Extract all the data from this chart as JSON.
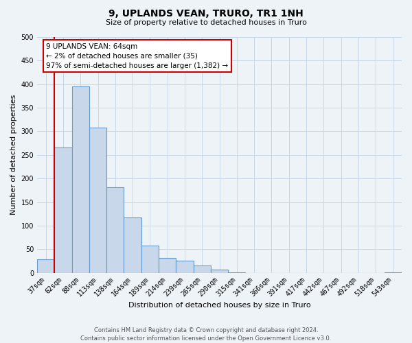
{
  "title": "9, UPLANDS VEAN, TRURO, TR1 1NH",
  "subtitle": "Size of property relative to detached houses in Truro",
  "xlabel": "Distribution of detached houses by size in Truro",
  "ylabel": "Number of detached properties",
  "bar_labels": [
    "37sqm",
    "62sqm",
    "88sqm",
    "113sqm",
    "138sqm",
    "164sqm",
    "189sqm",
    "214sqm",
    "239sqm",
    "265sqm",
    "290sqm",
    "315sqm",
    "341sqm",
    "366sqm",
    "391sqm",
    "417sqm",
    "442sqm",
    "467sqm",
    "492sqm",
    "518sqm",
    "543sqm"
  ],
  "bar_values": [
    28,
    265,
    395,
    308,
    182,
    117,
    58,
    31,
    25,
    15,
    7,
    1,
    0,
    0,
    0,
    0,
    0,
    0,
    0,
    0,
    1
  ],
  "bar_color": "#c8d8ea",
  "bar_edge_color": "#6699cc",
  "highlight_color": "#cc0000",
  "highlight_bar_index": 1,
  "ylim": [
    0,
    500
  ],
  "yticks": [
    0,
    50,
    100,
    150,
    200,
    250,
    300,
    350,
    400,
    450,
    500
  ],
  "annotation_title": "9 UPLANDS VEAN: 64sqm",
  "annotation_line1": "← 2% of detached houses are smaller (35)",
  "annotation_line2": "97% of semi-detached houses are larger (1,382) →",
  "annotation_box_facecolor": "#ffffff",
  "annotation_box_edgecolor": "#cc0000",
  "footer_line1": "Contains HM Land Registry data © Crown copyright and database right 2024.",
  "footer_line2": "Contains public sector information licensed under the Open Government Licence v3.0.",
  "grid_color": "#c8d8e8",
  "background_color": "#eef3f8",
  "title_fontsize": 10,
  "subtitle_fontsize": 8,
  "axis_label_fontsize": 8,
  "tick_fontsize": 7,
  "annotation_fontsize": 7.5,
  "footer_fontsize": 6
}
